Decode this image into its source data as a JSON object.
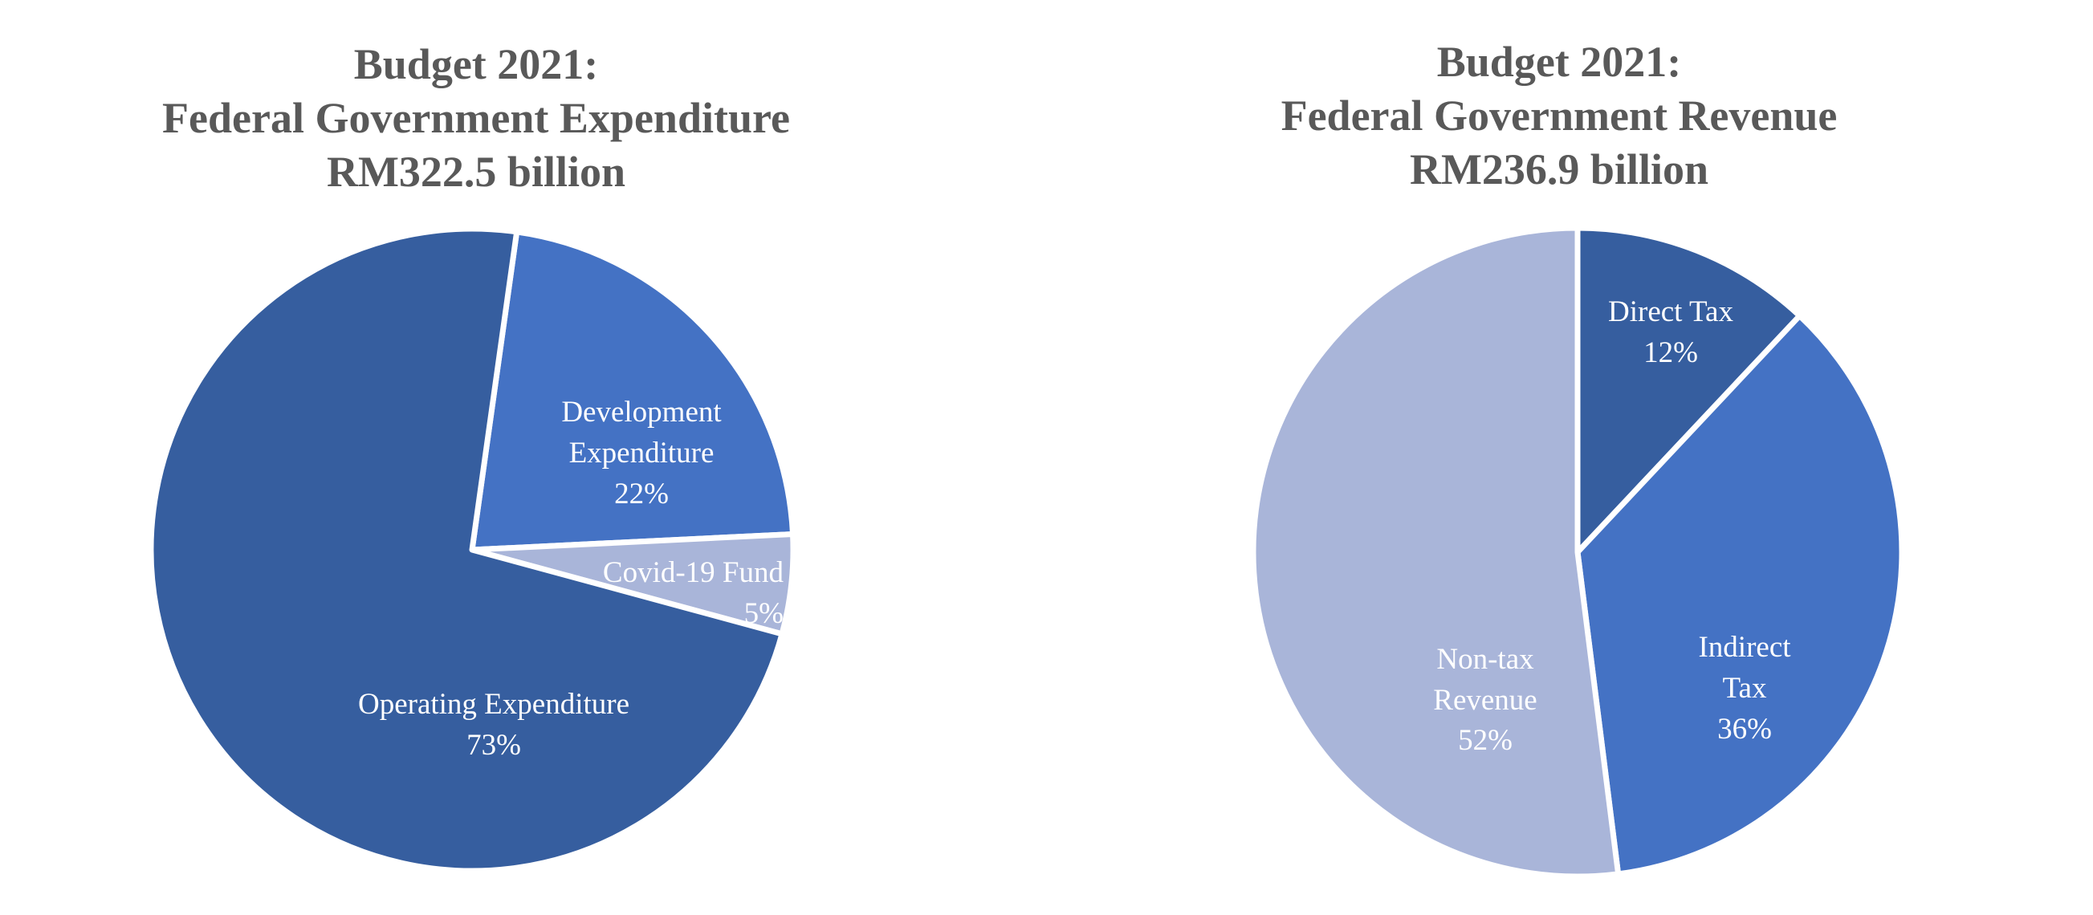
{
  "chart_data": [
    {
      "type": "pie",
      "title": [
        "Budget 2021:",
        "Federal Government Expenditure",
        "RM322.5 billion"
      ],
      "slices": [
        {
          "label": [
            "Development",
            "Expenditure"
          ],
          "value": 22,
          "value_label": "22%",
          "color": "#4472C4"
        },
        {
          "label": [
            "Covid-19 Fund"
          ],
          "value": 5,
          "value_label": "5%",
          "color": "#A9B5D9"
        },
        {
          "label": [
            "Operating Expenditure"
          ],
          "value": 73,
          "value_label": "73%",
          "color": "#365E9F"
        }
      ],
      "start_angle_deg": 8
    },
    {
      "type": "pie",
      "title": [
        "Budget 2021:",
        "Federal Government Revenue",
        "RM236.9 billion"
      ],
      "slices": [
        {
          "label": [
            "Direct Tax"
          ],
          "value": 12,
          "value_label": "12%",
          "color": "#365E9F"
        },
        {
          "label": [
            "Indirect",
            "Tax"
          ],
          "value": 36,
          "value_label": "36%",
          "color": "#4472C4"
        },
        {
          "label": [
            "Non-tax",
            "Revenue"
          ],
          "value": 52,
          "value_label": "52%",
          "color": "#A9B5D9"
        }
      ],
      "start_angle_deg": 0
    }
  ]
}
